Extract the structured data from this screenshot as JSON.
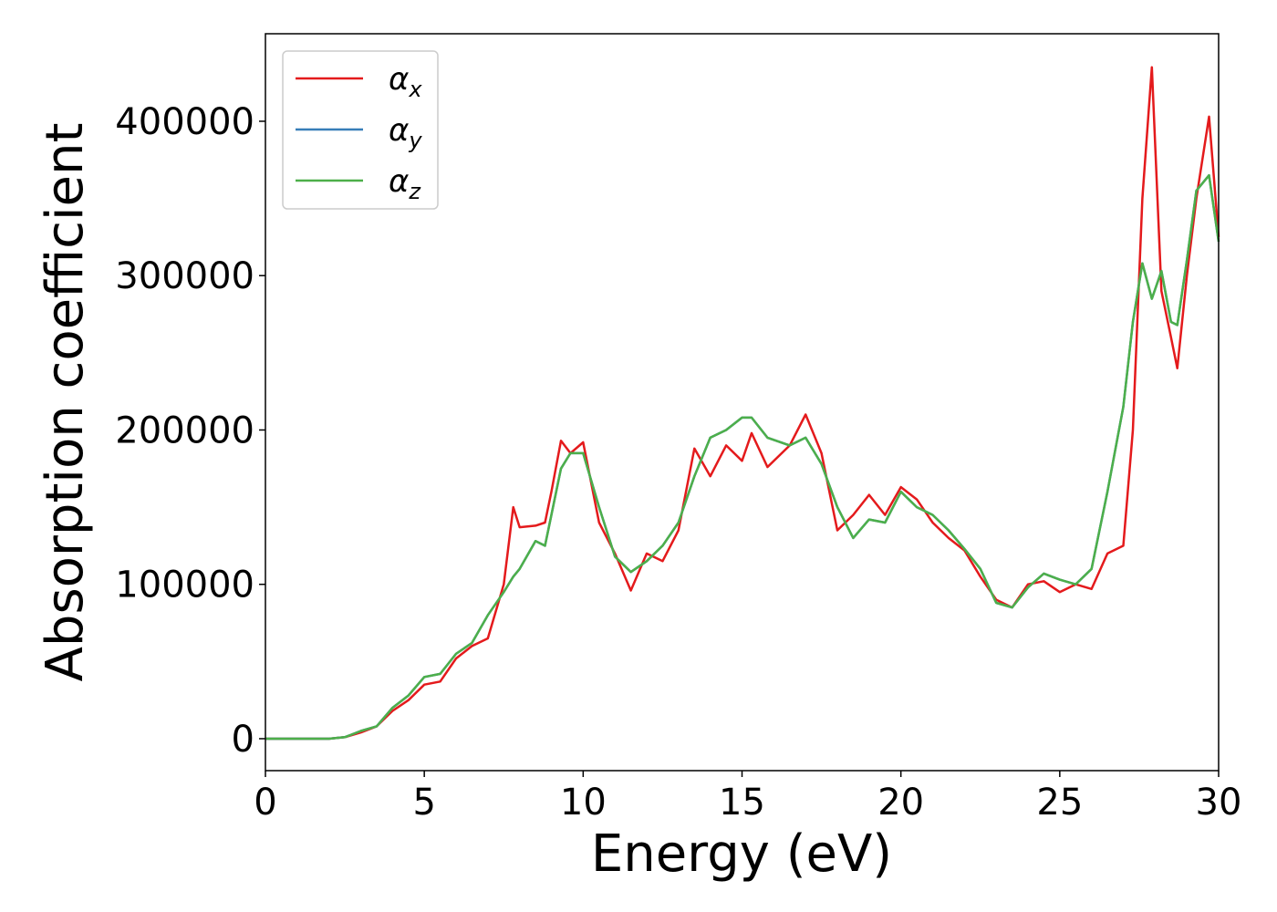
{
  "chart_data": {
    "type": "line",
    "xlabel": "Energy (eV)",
    "ylabel": "Absorption coefficient",
    "x": [
      0,
      0.5,
      1,
      1.5,
      2,
      2.5,
      3,
      3.5,
      4,
      4.5,
      5,
      5.5,
      6,
      6.5,
      7,
      7.5,
      7.8,
      8,
      8.5,
      8.8,
      9,
      9.3,
      9.6,
      10,
      10.5,
      11,
      11.5,
      12,
      12.5,
      13,
      13.5,
      14,
      14.5,
      15,
      15.3,
      15.8,
      16.5,
      17,
      17.5,
      18,
      18.5,
      19,
      19.5,
      20,
      20.5,
      21,
      21.5,
      22,
      22.5,
      23,
      23.5,
      24,
      24.5,
      25,
      25.5,
      26,
      26.5,
      27,
      27.3,
      27.6,
      27.9,
      28.2,
      28.5,
      28.7,
      29,
      29.3,
      29.7,
      30
    ],
    "series": [
      {
        "name": "αx",
        "color": "#e41a1c",
        "values": [
          0,
          0,
          0,
          0,
          0,
          1000,
          4000,
          8000,
          18000,
          25000,
          35000,
          37000,
          52000,
          60000,
          65000,
          100000,
          150000,
          137000,
          138000,
          140000,
          160000,
          193000,
          185000,
          192000,
          140000,
          120000,
          96000,
          120000,
          115000,
          135000,
          188000,
          170000,
          190000,
          180000,
          198000,
          176000,
          190000,
          210000,
          185000,
          135000,
          145000,
          158000,
          145000,
          163000,
          155000,
          140000,
          130000,
          122000,
          105000,
          90000,
          85000,
          100000,
          102000,
          95000,
          100000,
          97000,
          120000,
          125000,
          200000,
          350000,
          435000,
          290000,
          260000,
          240000,
          300000,
          350000,
          403000,
          325000
        ]
      },
      {
        "name": "αy",
        "color": "#377eb8",
        "values": [
          0,
          0,
          0,
          0,
          0,
          1000,
          5000,
          8000,
          20000,
          28000,
          40000,
          42000,
          55000,
          62000,
          80000,
          95000,
          105000,
          110000,
          128000,
          125000,
          145000,
          175000,
          185000,
          185000,
          150000,
          118000,
          108000,
          115000,
          125000,
          140000,
          170000,
          195000,
          200000,
          208000,
          208000,
          195000,
          190000,
          195000,
          178000,
          150000,
          130000,
          142000,
          140000,
          160000,
          150000,
          145000,
          135000,
          123000,
          110000,
          88000,
          85000,
          98000,
          107000,
          103000,
          100000,
          110000,
          160000,
          215000,
          270000,
          308000,
          285000,
          303000,
          270000,
          268000,
          310000,
          355000,
          365000,
          322000
        ]
      },
      {
        "name": "αz",
        "color": "#4daf4a",
        "values": [
          0,
          0,
          0,
          0,
          0,
          1000,
          5000,
          8000,
          20000,
          28000,
          40000,
          42000,
          55000,
          62000,
          80000,
          95000,
          105000,
          110000,
          128000,
          125000,
          145000,
          175000,
          185000,
          185000,
          150000,
          118000,
          108000,
          115000,
          125000,
          140000,
          170000,
          195000,
          200000,
          208000,
          208000,
          195000,
          190000,
          195000,
          178000,
          150000,
          130000,
          142000,
          140000,
          160000,
          150000,
          145000,
          135000,
          123000,
          110000,
          88000,
          85000,
          98000,
          107000,
          103000,
          100000,
          110000,
          160000,
          215000,
          270000,
          308000,
          285000,
          303000,
          270000,
          268000,
          310000,
          355000,
          365000,
          322000
        ]
      }
    ],
    "xlim": [
      0,
      30
    ],
    "xticks": [
      0,
      5,
      10,
      15,
      20,
      25,
      30
    ],
    "ylim": [
      -20700,
      456700
    ],
    "yticks": [
      0,
      100000,
      200000,
      300000,
      400000
    ],
    "legend": "upper left"
  }
}
